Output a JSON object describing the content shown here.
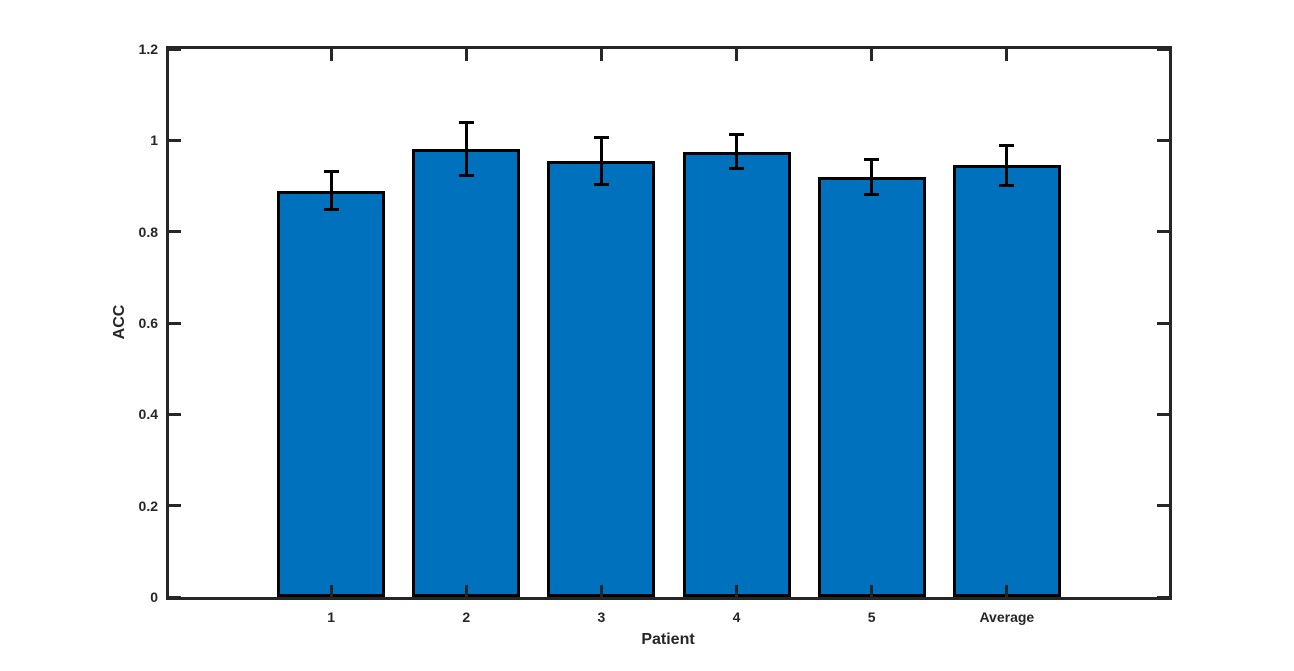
{
  "chart_data": {
    "type": "bar",
    "title": "",
    "xlabel": "Patient",
    "ylabel": "ACC",
    "categories": [
      "1",
      "2",
      "3",
      "4",
      "5",
      "Average"
    ],
    "values": [
      0.89,
      0.98,
      0.955,
      0.975,
      0.92,
      0.945
    ],
    "errors": [
      0.042,
      0.058,
      0.052,
      0.037,
      0.038,
      0.044
    ],
    "ylim": [
      0,
      1.2
    ],
    "yticks": [
      0,
      0.2,
      0.4,
      0.6,
      0.8,
      1,
      1.2
    ],
    "ytick_labels": [
      "0",
      "0.2",
      "0.4",
      "0.6",
      "0.8",
      "1",
      "1.2"
    ],
    "xlim": [
      -0.2,
      7.2
    ],
    "bar_width": 0.8,
    "grid": false,
    "legend": null,
    "error_bar_style": "vertical-with-caps",
    "tick_direction": "in",
    "box": true,
    "colors": {
      "bar_fill": "#0072BD",
      "bar_edge": "#000000",
      "error_bar": "#000000",
      "axis": "#262626",
      "text": "#262626",
      "background": "#ffffff"
    }
  }
}
